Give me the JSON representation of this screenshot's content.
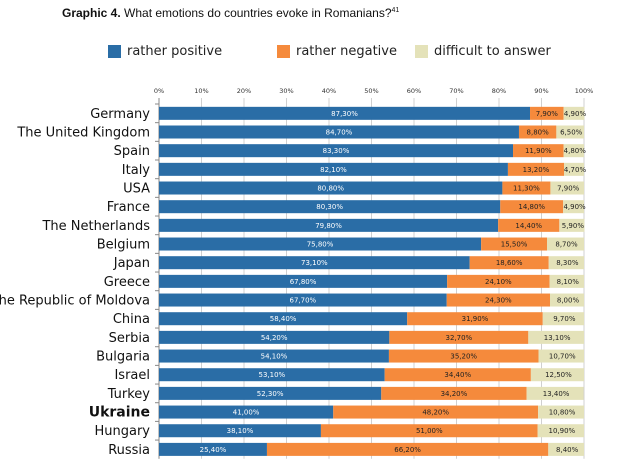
{
  "title": {
    "prefix": "Graphic 4.",
    "text": " What emotions do countries evoke in Romanians?",
    "footnote": "41"
  },
  "chart_data": {
    "type": "bar",
    "orientation": "horizontal",
    "stacked": true,
    "xlim": [
      0,
      100
    ],
    "xticks": [
      "0%",
      "10%",
      "20%",
      "30%",
      "40%",
      "50%",
      "60%",
      "70%",
      "80%",
      "90%",
      "100%"
    ],
    "grid": true,
    "legend_position": "top",
    "categories": [
      "Germany",
      "The United Kingdom",
      "Spain",
      "Italy",
      "USA",
      "France",
      "The Netherlands",
      "Belgium",
      "Japan",
      "Greece",
      "The Republic of Moldova",
      "China",
      "Serbia",
      "Bulgaria",
      "Israel",
      "Turkey",
      "Ukraine",
      "Hungary",
      "Russia"
    ],
    "highlighted_category": "Ukraine",
    "series": [
      {
        "name": "rather positive",
        "color": "#2a6da6",
        "values": [
          87.3,
          84.7,
          83.3,
          82.1,
          80.8,
          80.3,
          79.8,
          75.8,
          73.1,
          67.8,
          67.7,
          58.4,
          54.2,
          54.1,
          53.1,
          52.3,
          41.0,
          38.1,
          25.4
        ],
        "labels": [
          "87,30%",
          "84,70%",
          "83,30%",
          "82,10%",
          "80,80%",
          "80,30%",
          "79,80%",
          "75,80%",
          "73,10%",
          "67,80%",
          "67,70%",
          "58,40%",
          "54,20%",
          "54,10%",
          "53,10%",
          "52,30%",
          "41,00%",
          "38,10%",
          "25,40%"
        ]
      },
      {
        "name": "rather negative",
        "color": "#f58a3c",
        "values": [
          7.9,
          8.8,
          11.9,
          13.2,
          11.3,
          14.8,
          14.4,
          15.5,
          18.6,
          24.1,
          24.3,
          31.9,
          32.7,
          35.2,
          34.4,
          34.2,
          48.2,
          51.0,
          66.2
        ],
        "labels": [
          "7,90%",
          "8,80%",
          "11,90%",
          "13,20%",
          "11,30%",
          "14,80%",
          "14,40%",
          "15,50%",
          "18,60%",
          "24,10%",
          "24,30%",
          "31,90%",
          "32,70%",
          "35,20%",
          "34,40%",
          "34,20%",
          "48,20%",
          "51,00%",
          "66,20%"
        ]
      },
      {
        "name": "difficult to answer",
        "color": "#e4e2b9",
        "values": [
          4.9,
          6.5,
          4.8,
          4.7,
          7.9,
          4.9,
          5.9,
          8.7,
          8.3,
          8.1,
          8.0,
          9.7,
          13.1,
          10.7,
          12.5,
          13.4,
          10.8,
          10.9,
          8.4
        ],
        "labels": [
          "4,90%",
          "6,50%",
          "4,80%",
          "4,70%",
          "7,90%",
          "4,90%",
          "5,90%",
          "8,70%",
          "8,30%",
          "8,10%",
          "8,00%",
          "9,70%",
          "13,10%",
          "10,70%",
          "12,50%",
          "13,40%",
          "10,80%",
          "10,90%",
          "8,40%"
        ]
      }
    ]
  }
}
